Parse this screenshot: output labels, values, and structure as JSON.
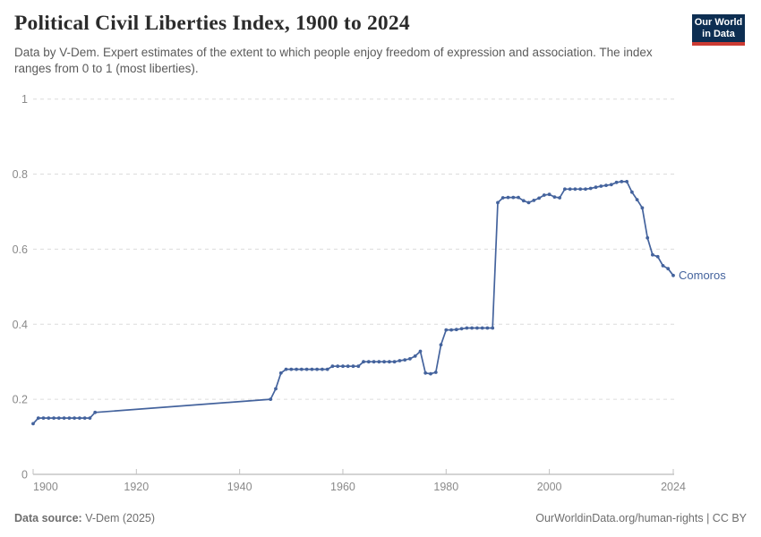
{
  "header": {
    "title": "Political Civil Liberties Index, 1900 to 2024",
    "subtitle": "Data by V-Dem. Expert estimates of the extent to which people enjoy freedom of expression and association. The index ranges from 0 to 1 (most liberties).",
    "logo_line1": "Our World",
    "logo_line2": "in Data"
  },
  "footer": {
    "source_label": "Data source:",
    "source_value": " V-Dem (2025)",
    "link": "OurWorldinData.org/human-rights | CC BY"
  },
  "colors": {
    "accent_line": "#44639d",
    "logo_bg": "#0d2e52",
    "logo_stripe": "#cc3b33",
    "grid": "#dcdcdc",
    "axis": "#a8a8a8",
    "tick_mark": "#c2c2c2",
    "tick_text": "#8a8a8a",
    "title_text": "#2b2b2b",
    "subtitle_text": "#5a5a5a",
    "footer_text": "#6e6e6e"
  },
  "chart_data": {
    "type": "line",
    "title": "Political Civil Liberties Index, 1900 to 2024",
    "xlabel": "",
    "ylabel": "",
    "xlim": [
      1900,
      2024
    ],
    "ylim": [
      0,
      1
    ],
    "x_ticks": [
      1900,
      1920,
      1940,
      1960,
      1980,
      2000,
      2024
    ],
    "y_ticks": [
      0,
      0.2,
      0.4,
      0.6,
      0.8,
      1
    ],
    "grid": "horizontal-dashed",
    "legend_position": "end-of-line-label",
    "marker": "circle",
    "interpolated_gap_years": [
      1912,
      1946
    ],
    "series": [
      {
        "name": "Comoros",
        "points": [
          [
            1900,
            0.135
          ],
          [
            1901,
            0.15
          ],
          [
            1902,
            0.15
          ],
          [
            1903,
            0.15
          ],
          [
            1904,
            0.15
          ],
          [
            1905,
            0.15
          ],
          [
            1906,
            0.15
          ],
          [
            1907,
            0.15
          ],
          [
            1908,
            0.15
          ],
          [
            1909,
            0.15
          ],
          [
            1910,
            0.15
          ],
          [
            1911,
            0.15
          ],
          [
            1912,
            0.165
          ],
          [
            1946,
            0.2
          ],
          [
            1947,
            0.228
          ],
          [
            1948,
            0.27
          ],
          [
            1949,
            0.28
          ],
          [
            1950,
            0.28
          ],
          [
            1951,
            0.28
          ],
          [
            1952,
            0.28
          ],
          [
            1953,
            0.28
          ],
          [
            1954,
            0.28
          ],
          [
            1955,
            0.28
          ],
          [
            1956,
            0.28
          ],
          [
            1957,
            0.28
          ],
          [
            1958,
            0.288
          ],
          [
            1959,
            0.288
          ],
          [
            1960,
            0.288
          ],
          [
            1961,
            0.288
          ],
          [
            1962,
            0.288
          ],
          [
            1963,
            0.288
          ],
          [
            1964,
            0.3
          ],
          [
            1965,
            0.3
          ],
          [
            1966,
            0.3
          ],
          [
            1967,
            0.3
          ],
          [
            1968,
            0.3
          ],
          [
            1969,
            0.3
          ],
          [
            1970,
            0.3
          ],
          [
            1971,
            0.303
          ],
          [
            1972,
            0.305
          ],
          [
            1973,
            0.308
          ],
          [
            1974,
            0.315
          ],
          [
            1975,
            0.328
          ],
          [
            1976,
            0.27
          ],
          [
            1977,
            0.268
          ],
          [
            1978,
            0.272
          ],
          [
            1979,
            0.345
          ],
          [
            1980,
            0.385
          ],
          [
            1981,
            0.385
          ],
          [
            1982,
            0.386
          ],
          [
            1983,
            0.388
          ],
          [
            1984,
            0.39
          ],
          [
            1985,
            0.39
          ],
          [
            1986,
            0.39
          ],
          [
            1987,
            0.39
          ],
          [
            1988,
            0.39
          ],
          [
            1989,
            0.39
          ],
          [
            1990,
            0.724
          ],
          [
            1991,
            0.737
          ],
          [
            1992,
            0.738
          ],
          [
            1993,
            0.738
          ],
          [
            1994,
            0.738
          ],
          [
            1995,
            0.729
          ],
          [
            1996,
            0.724
          ],
          [
            1997,
            0.73
          ],
          [
            1998,
            0.736
          ],
          [
            1999,
            0.744
          ],
          [
            2000,
            0.746
          ],
          [
            2001,
            0.739
          ],
          [
            2002,
            0.737
          ],
          [
            2003,
            0.76
          ],
          [
            2004,
            0.76
          ],
          [
            2005,
            0.76
          ],
          [
            2006,
            0.76
          ],
          [
            2007,
            0.76
          ],
          [
            2008,
            0.762
          ],
          [
            2009,
            0.765
          ],
          [
            2010,
            0.768
          ],
          [
            2011,
            0.77
          ],
          [
            2012,
            0.772
          ],
          [
            2013,
            0.778
          ],
          [
            2014,
            0.78
          ],
          [
            2015,
            0.78
          ],
          [
            2016,
            0.752
          ],
          [
            2017,
            0.732
          ],
          [
            2018,
            0.71
          ],
          [
            2019,
            0.63
          ],
          [
            2020,
            0.585
          ],
          [
            2021,
            0.58
          ],
          [
            2022,
            0.556
          ],
          [
            2023,
            0.548
          ],
          [
            2024,
            0.53
          ]
        ]
      }
    ]
  }
}
